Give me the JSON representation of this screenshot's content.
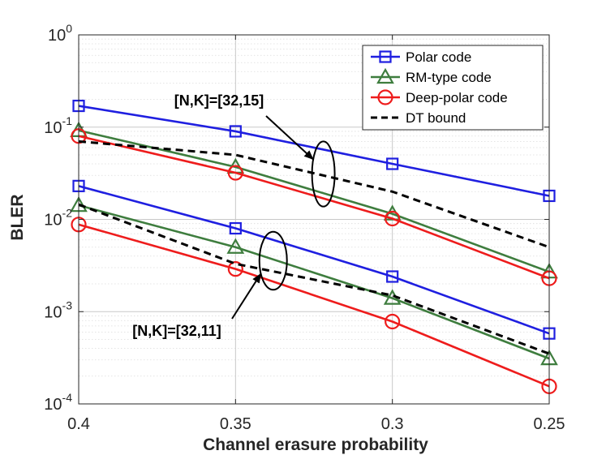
{
  "chart_data": {
    "type": "line",
    "xlabel": "Channel erasure probability",
    "ylabel": "BLER",
    "x": [
      0.4,
      0.35,
      0.3,
      0.25
    ],
    "x_tick_labels": [
      "0.4",
      "0.35",
      "0.3",
      "0.25"
    ],
    "xlim": [
      0.4,
      0.25
    ],
    "ylim": [
      0.0001,
      1
    ],
    "yscale": "log",
    "y_tick_labels": [
      {
        "base": "10",
        "exp": "-4"
      },
      {
        "base": "10",
        "exp": "-3"
      },
      {
        "base": "10",
        "exp": "-2"
      },
      {
        "base": "10",
        "exp": "-1"
      },
      {
        "base": "10",
        "exp": "0"
      }
    ],
    "grid": true,
    "legend_position": "top-right",
    "legend": [
      {
        "label": "Polar code",
        "color": "#1f1fe0",
        "marker": "square",
        "dash": false
      },
      {
        "label": "RM-type code",
        "color": "#3e7d3e",
        "marker": "triangle",
        "dash": false
      },
      {
        "label": "Deep-polar code",
        "color": "#ee1c1c",
        "marker": "circle",
        "dash": false
      },
      {
        "label": "DT bound",
        "color": "#000000",
        "marker": "none",
        "dash": true
      }
    ],
    "series": [
      {
        "name": "Polar code [32,15]",
        "group": "[32,15]",
        "color": "#1f1fe0",
        "marker": "square",
        "dash": false,
        "values": [
          0.17,
          0.09,
          0.04,
          0.018
        ]
      },
      {
        "name": "RM-type code [32,15]",
        "group": "[32,15]",
        "color": "#3e7d3e",
        "marker": "triangle",
        "dash": false,
        "values": [
          0.092,
          0.037,
          0.0115,
          0.0027
        ]
      },
      {
        "name": "Deep-polar code [32,15]",
        "group": "[32,15]",
        "color": "#ee1c1c",
        "marker": "circle",
        "dash": false,
        "values": [
          0.08,
          0.032,
          0.0102,
          0.0023
        ]
      },
      {
        "name": "DT bound [32,15]",
        "group": "[32,15]",
        "color": "#000000",
        "marker": "none",
        "dash": true,
        "values": [
          0.07,
          0.05,
          0.02,
          0.005
        ]
      },
      {
        "name": "Polar code [32,11]",
        "group": "[32,11]",
        "color": "#1f1fe0",
        "marker": "square",
        "dash": false,
        "values": [
          0.023,
          0.008,
          0.0024,
          0.00058
        ]
      },
      {
        "name": "RM-type code [32,11]",
        "group": "[32,11]",
        "color": "#3e7d3e",
        "marker": "triangle",
        "dash": false,
        "values": [
          0.0142,
          0.005,
          0.0014,
          0.00031
        ]
      },
      {
        "name": "Deep-polar code [32,11]",
        "group": "[32,11]",
        "color": "#ee1c1c",
        "marker": "circle",
        "dash": false,
        "values": [
          0.0088,
          0.0029,
          0.00078,
          0.000155
        ]
      },
      {
        "name": "DT bound [32,11]",
        "group": "[32,11]",
        "color": "#000000",
        "marker": "none",
        "dash": true,
        "values": [
          0.0145,
          0.0033,
          0.0015,
          0.00035
        ]
      }
    ],
    "annotations": [
      {
        "text": "[N,K]=[32,15]",
        "group": "[32,15]"
      },
      {
        "text": "[N,K]=[32,11]",
        "group": "[32,11]"
      }
    ]
  }
}
